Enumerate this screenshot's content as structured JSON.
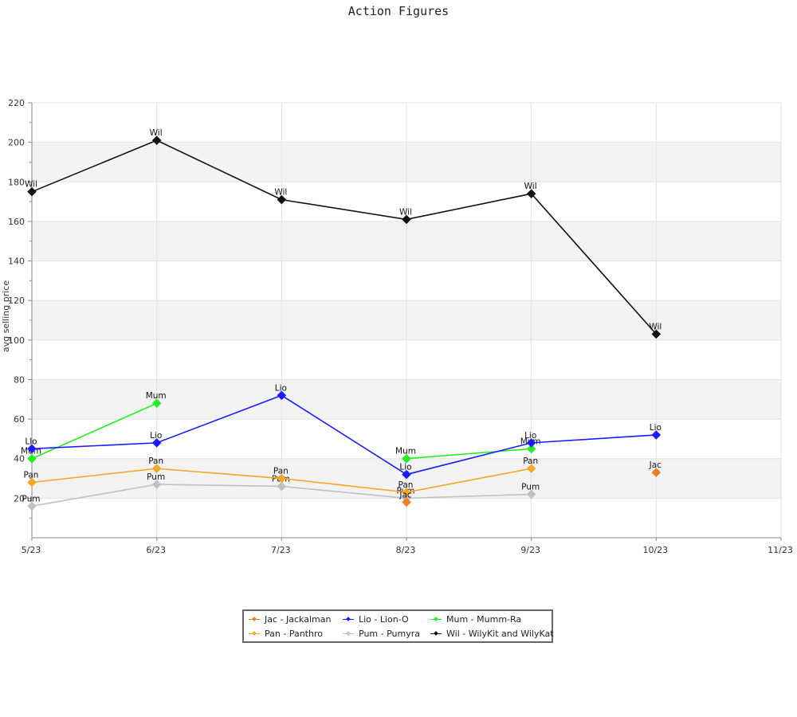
{
  "chart_data": {
    "type": "line",
    "title": "Action Figures",
    "xlabel": "",
    "ylabel": "avg selling price",
    "x_tick_labels": [
      "5/23",
      "6/23",
      "7/23",
      "8/23",
      "9/23",
      "10/23",
      "11/23"
    ],
    "y_ticks": [
      20,
      40,
      60,
      80,
      100,
      120,
      140,
      160,
      180,
      200,
      220
    ],
    "ylim": [
      0,
      220
    ],
    "grid": true,
    "legend_position": "bottom-center",
    "series": [
      {
        "name": "Jac - Jackalman",
        "label": "Jac",
        "color": "#ef7d22",
        "points": [
          {
            "x": "8/23",
            "y": 18
          },
          {
            "x": "10/23",
            "y": 33
          }
        ],
        "connected": false
      },
      {
        "name": "Lio - Lion-O",
        "label": "Lio",
        "color": "#1a1aff",
        "points": [
          {
            "x": "5/23",
            "y": 45
          },
          {
            "x": "6/23",
            "y": 48
          },
          {
            "x": "7/23",
            "y": 72
          },
          {
            "x": "8/23",
            "y": 32
          },
          {
            "x": "9/23",
            "y": 48
          },
          {
            "x": "10/23",
            "y": 52
          }
        ],
        "connected": true
      },
      {
        "name": "Mum - Mumm-Ra",
        "label": "Mum",
        "color": "#22ee22",
        "segments": [
          [
            {
              "x": "5/23",
              "y": 40
            },
            {
              "x": "6/23",
              "y": 68
            }
          ],
          [
            {
              "x": "8/23",
              "y": 40
            },
            {
              "x": "9/23",
              "y": 45
            }
          ]
        ],
        "connected": true
      },
      {
        "name": "Pan - Panthro",
        "label": "Pan",
        "color": "#f5a623",
        "points": [
          {
            "x": "5/23",
            "y": 28
          },
          {
            "x": "6/23",
            "y": 35
          },
          {
            "x": "7/23",
            "y": 30
          },
          {
            "x": "8/23",
            "y": 23
          },
          {
            "x": "9/23",
            "y": 35
          }
        ],
        "connected": true
      },
      {
        "name": "Pum - Pumyra",
        "label": "Pum",
        "color": "#c0c0c0",
        "points": [
          {
            "x": "5/23",
            "y": 16
          },
          {
            "x": "6/23",
            "y": 27
          },
          {
            "x": "7/23",
            "y": 26
          },
          {
            "x": "8/23",
            "y": 20
          },
          {
            "x": "9/23",
            "y": 22
          }
        ],
        "connected": true
      },
      {
        "name": "Wil - WilyKit and WilyKat",
        "label": "Wil",
        "color": "#111111",
        "points": [
          {
            "x": "5/23",
            "y": 175
          },
          {
            "x": "6/23",
            "y": 201
          },
          {
            "x": "7/23",
            "y": 171
          },
          {
            "x": "8/23",
            "y": 161
          },
          {
            "x": "9/23",
            "y": 174
          },
          {
            "x": "10/23",
            "y": 103
          }
        ],
        "connected": true
      }
    ]
  }
}
